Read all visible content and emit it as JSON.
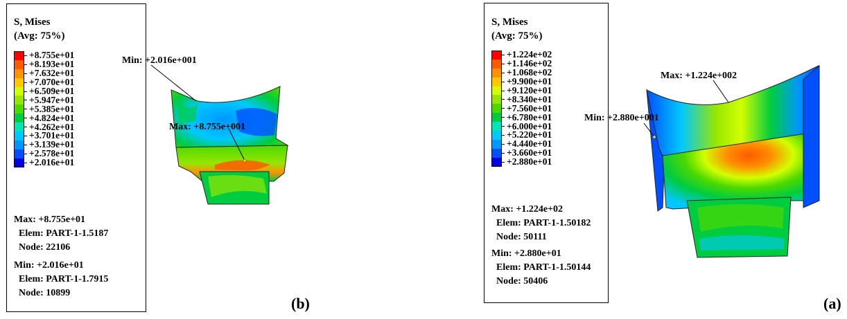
{
  "panel_b": {
    "label": "(b)",
    "legend": {
      "title": "S, Mises",
      "subtitle": "(Avg: 75%)",
      "values": [
        "+8.755e+01",
        "+8.193e+01",
        "+7.632e+01",
        "+7.070e+01",
        "+6.509e+01",
        "+5.947e+01",
        "+5.385e+01",
        "+4.824e+01",
        "+4.262e+01",
        "+3.701e+01",
        "+3.139e+01",
        "+2.578e+01",
        "+2.016e+01"
      ],
      "colors": [
        "#ff0000",
        "#ff5a00",
        "#ff9200",
        "#ffc800",
        "#d2ff00",
        "#96e600",
        "#4cd900",
        "#00cc40",
        "#00e6b4",
        "#00c8ff",
        "#0096ff",
        "#0050ff",
        "#0000e6"
      ]
    },
    "max_label": "Max: +8.755e+01",
    "max_elem": "Elem: PART-1-1.5187",
    "max_node": "Node: 22106",
    "min_label": "Min: +2.016e+01",
    "min_elem": "Elem: PART-1-1.7915",
    "min_node": "Node: 10899",
    "anno_min": "Min: +2.016e+001",
    "anno_max": "Max: +8.755e+001"
  },
  "panel_a": {
    "label": "(a)",
    "legend": {
      "title": "S, Mises",
      "subtitle": "(Avg: 75%)",
      "values": [
        "+1.224e+02",
        "+1.146e+02",
        "+1.068e+02",
        "+9.900e+01",
        "+9.120e+01",
        "+8.340e+01",
        "+7.560e+01",
        "+6.780e+01",
        "+6.000e+01",
        "+5.220e+01",
        "+4.440e+01",
        "+3.660e+01",
        "+2.880e+01"
      ],
      "colors": [
        "#ff0000",
        "#ff5a00",
        "#ff9200",
        "#ffc800",
        "#d2ff00",
        "#96e600",
        "#4cd900",
        "#00cc40",
        "#00e6b4",
        "#00c8ff",
        "#0096ff",
        "#0050ff",
        "#0000e6"
      ]
    },
    "max_label": "Max: +1.224e+02",
    "max_elem": "Elem: PART-1-1.50182",
    "max_node": "Node: 50111",
    "min_label": "Min: +2.880e+01",
    "min_elem": "Elem: PART-1-1.50144",
    "min_node": "Node: 50406",
    "anno_max": "Max: +1.224e+002",
    "anno_min": "Min: +2.880e+001"
  }
}
